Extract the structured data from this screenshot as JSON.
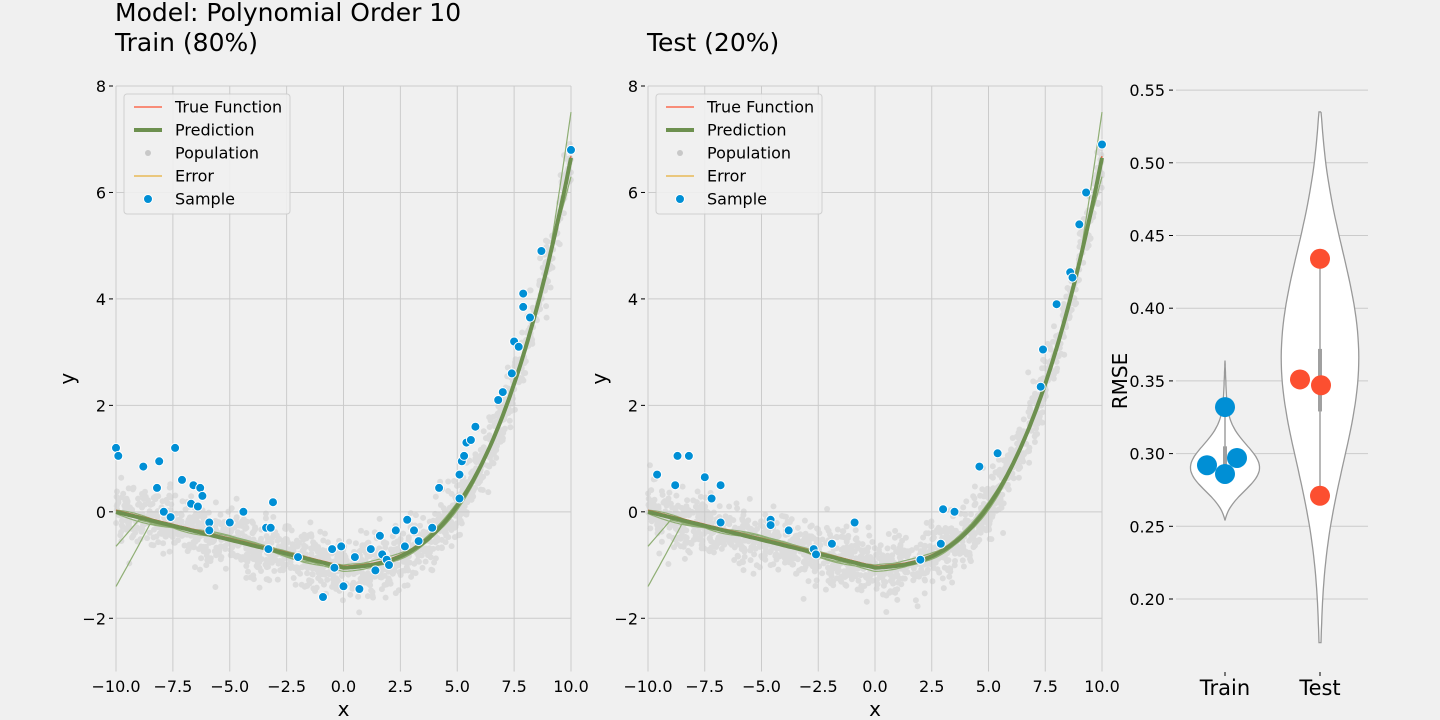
{
  "titles": {
    "main": "Model: Polynomial Order 10",
    "train": "Train (80%)",
    "test": "Test (20%)"
  },
  "colors": {
    "background": "#f0f0f0",
    "grid": "#cbcbcb",
    "true_function": "#fc4f30",
    "prediction": "#6d904f",
    "population": "#b0b0b0",
    "error": "#e5ae38",
    "sample": "#008fd5",
    "test_points": "#fc4f30"
  },
  "legend": {
    "placement": "top-left",
    "items": [
      {
        "label": "True Function",
        "kind": "thin-line",
        "color": "#fc4f30"
      },
      {
        "label": "Prediction",
        "kind": "thick-line",
        "color": "#6d904f"
      },
      {
        "label": "Population",
        "kind": "dot",
        "color": "#c8c8c8"
      },
      {
        "label": "Error",
        "kind": "thin-line",
        "color": "#e5ae38"
      },
      {
        "label": "Sample",
        "kind": "sample-dot",
        "color": "#008fd5"
      }
    ]
  },
  "chart_data": [
    {
      "type": "scatter",
      "title": "Train (80%)",
      "xlabel": "x",
      "ylabel": "y",
      "xlim": [
        -10,
        10
      ],
      "ylim": [
        -3,
        8
      ],
      "xticks": [
        "−10.0",
        "−7.5",
        "−5.0",
        "−2.5",
        "0.0",
        "2.5",
        "5.0",
        "7.5",
        "10.0"
      ],
      "yticks": [
        "−2",
        "0",
        "2",
        "4",
        "6",
        "8"
      ],
      "grid": true,
      "legend_position": "top-left",
      "series": [
        {
          "name": "True Function",
          "kind": "line"
        },
        {
          "name": "Prediction",
          "kind": "line"
        },
        {
          "name": "Population",
          "kind": "scatter"
        },
        {
          "name": "Error",
          "kind": "line"
        },
        {
          "name": "Sample",
          "kind": "scatter",
          "points": [
            [
              -10,
              1.2
            ],
            [
              -9.9,
              1.05
            ],
            [
              -8.8,
              0.85
            ],
            [
              -8.1,
              0.95
            ],
            [
              -8.2,
              0.45
            ],
            [
              -7.9,
              0
            ],
            [
              -7.6,
              -0.1
            ],
            [
              -7.4,
              1.2
            ],
            [
              -7.1,
              0.6
            ],
            [
              -6.7,
              0.15
            ],
            [
              -6.6,
              0.5
            ],
            [
              -6.4,
              0.1
            ],
            [
              -6.3,
              0.45
            ],
            [
              -6.2,
              0.3
            ],
            [
              -5.9,
              -0.2
            ],
            [
              -5.9,
              -0.35
            ],
            [
              -5.0,
              -0.2
            ],
            [
              -4.4,
              0
            ],
            [
              -3.4,
              -0.3
            ],
            [
              -3.3,
              -0.7
            ],
            [
              -3.2,
              -0.3
            ],
            [
              -3.1,
              0.18
            ],
            [
              -2.0,
              -0.85
            ],
            [
              -0.9,
              -1.6
            ],
            [
              -0.5,
              -0.7
            ],
            [
              -0.4,
              -1.05
            ],
            [
              -0.1,
              -0.65
            ],
            [
              0,
              -1.4
            ],
            [
              0.5,
              -0.85
            ],
            [
              0.7,
              -1.45
            ],
            [
              1.2,
              -0.7
            ],
            [
              1.4,
              -1.1
            ],
            [
              1.7,
              -0.8
            ],
            [
              1.6,
              -0.45
            ],
            [
              1.9,
              -0.9
            ],
            [
              2.0,
              -1.0
            ],
            [
              2.3,
              -0.35
            ],
            [
              2.7,
              -0.65
            ],
            [
              2.8,
              -0.15
            ],
            [
              3.1,
              -0.35
            ],
            [
              3.3,
              -0.55
            ],
            [
              3.9,
              -0.3
            ],
            [
              4.2,
              0.45
            ],
            [
              5.1,
              0.25
            ],
            [
              5.1,
              0.7
            ],
            [
              5.2,
              0.95
            ],
            [
              5.3,
              1.05
            ],
            [
              5.4,
              1.3
            ],
            [
              5.6,
              1.35
            ],
            [
              5.8,
              1.6
            ],
            [
              6.8,
              2.1
            ],
            [
              7.0,
              2.25
            ],
            [
              7.4,
              2.6
            ],
            [
              7.5,
              3.2
            ],
            [
              7.7,
              3.1
            ],
            [
              7.9,
              4.1
            ],
            [
              7.9,
              3.85
            ],
            [
              8.2,
              3.65
            ],
            [
              8.7,
              4.9
            ],
            [
              10,
              6.8
            ]
          ]
        }
      ]
    },
    {
      "type": "scatter",
      "title": "Test (20%)",
      "xlabel": "x",
      "ylabel": "y",
      "xlim": [
        -10,
        10
      ],
      "ylim": [
        -3,
        8
      ],
      "xticks": [
        "−10.0",
        "−7.5",
        "−5.0",
        "−2.5",
        "0.0",
        "2.5",
        "5.0",
        "7.5",
        "10.0"
      ],
      "yticks": [
        "−2",
        "0",
        "2",
        "4",
        "6",
        "8"
      ],
      "grid": true,
      "legend_position": "top-left",
      "series": [
        {
          "name": "True Function",
          "kind": "line"
        },
        {
          "name": "Prediction",
          "kind": "line"
        },
        {
          "name": "Population",
          "kind": "scatter"
        },
        {
          "name": "Error",
          "kind": "line"
        },
        {
          "name": "Sample",
          "kind": "scatter",
          "points": [
            [
              -9.6,
              0.7
            ],
            [
              -8.7,
              1.05
            ],
            [
              -8.2,
              1.05
            ],
            [
              -8.8,
              0.5
            ],
            [
              -7.5,
              0.65
            ],
            [
              -7.2,
              0.25
            ],
            [
              -6.8,
              0.5
            ],
            [
              -6.8,
              -0.2
            ],
            [
              -4.6,
              -0.15
            ],
            [
              -4.6,
              -0.25
            ],
            [
              -3.8,
              -0.35
            ],
            [
              -2.7,
              -0.7
            ],
            [
              -2.6,
              -0.8
            ],
            [
              -1.9,
              -0.6
            ],
            [
              -0.9,
              -0.2
            ],
            [
              2.0,
              -0.9
            ],
            [
              2.9,
              -0.6
            ],
            [
              3.0,
              0.05
            ],
            [
              3.5,
              0
            ],
            [
              4.6,
              0.85
            ],
            [
              5.4,
              1.1
            ],
            [
              7.3,
              2.35
            ],
            [
              7.4,
              3.05
            ],
            [
              8.0,
              3.9
            ],
            [
              8.6,
              4.5
            ],
            [
              8.7,
              4.4
            ],
            [
              9.0,
              5.4
            ],
            [
              9.3,
              6.0
            ],
            [
              10,
              6.9
            ]
          ]
        }
      ]
    },
    {
      "type": "violin",
      "ylabel": "RMSE",
      "categories": [
        "Train",
        "Test"
      ],
      "ylim": [
        0.15,
        0.56
      ],
      "yticks": [
        "0.20",
        "0.25",
        "0.30",
        "0.35",
        "0.40",
        "0.45",
        "0.50",
        "0.55"
      ],
      "grid": true,
      "series": [
        {
          "name": "Train",
          "values": [
            0.292,
            0.286,
            0.297,
            0.332
          ],
          "color": "#008fd5"
        },
        {
          "name": "Test",
          "values": [
            0.434,
            0.351,
            0.347,
            0.271
          ],
          "color": "#fc4f30"
        }
      ]
    }
  ]
}
